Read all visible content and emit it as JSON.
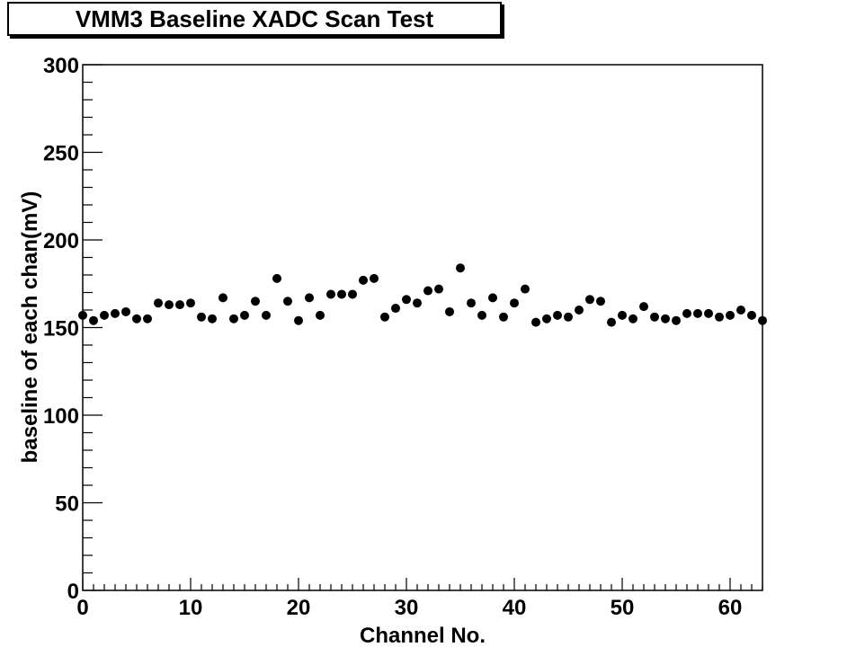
{
  "chart_data": {
    "type": "scatter",
    "title": "VMM3 Baseline XADC Scan Test",
    "xlabel": "Channel No.",
    "ylabel": "baseline of each chan(mV)",
    "xlim": [
      0,
      63
    ],
    "ylim": [
      0,
      300
    ],
    "x_ticks": [
      0,
      10,
      20,
      30,
      40,
      50,
      60
    ],
    "y_ticks": [
      0,
      50,
      100,
      150,
      200,
      250,
      300
    ],
    "grid": false,
    "legend": false,
    "marker_color": "#000000",
    "points": [
      {
        "x": 0,
        "y": 157
      },
      {
        "x": 1,
        "y": 154
      },
      {
        "x": 2,
        "y": 157
      },
      {
        "x": 3,
        "y": 158
      },
      {
        "x": 4,
        "y": 159
      },
      {
        "x": 5,
        "y": 155
      },
      {
        "x": 6,
        "y": 155
      },
      {
        "x": 7,
        "y": 164
      },
      {
        "x": 8,
        "y": 163
      },
      {
        "x": 9,
        "y": 163
      },
      {
        "x": 10,
        "y": 164
      },
      {
        "x": 11,
        "y": 156
      },
      {
        "x": 12,
        "y": 155
      },
      {
        "x": 13,
        "y": 167
      },
      {
        "x": 14,
        "y": 155
      },
      {
        "x": 15,
        "y": 157
      },
      {
        "x": 16,
        "y": 165
      },
      {
        "x": 17,
        "y": 157
      },
      {
        "x": 18,
        "y": 178
      },
      {
        "x": 19,
        "y": 165
      },
      {
        "x": 20,
        "y": 154
      },
      {
        "x": 21,
        "y": 167
      },
      {
        "x": 22,
        "y": 157
      },
      {
        "x": 23,
        "y": 169
      },
      {
        "x": 24,
        "y": 169
      },
      {
        "x": 25,
        "y": 169
      },
      {
        "x": 26,
        "y": 177
      },
      {
        "x": 27,
        "y": 178
      },
      {
        "x": 28,
        "y": 156
      },
      {
        "x": 29,
        "y": 161
      },
      {
        "x": 30,
        "y": 166
      },
      {
        "x": 31,
        "y": 164
      },
      {
        "x": 32,
        "y": 171
      },
      {
        "x": 33,
        "y": 172
      },
      {
        "x": 34,
        "y": 159
      },
      {
        "x": 35,
        "y": 184
      },
      {
        "x": 36,
        "y": 164
      },
      {
        "x": 37,
        "y": 157
      },
      {
        "x": 38,
        "y": 167
      },
      {
        "x": 39,
        "y": 156
      },
      {
        "x": 40,
        "y": 164
      },
      {
        "x": 41,
        "y": 172
      },
      {
        "x": 42,
        "y": 153
      },
      {
        "x": 43,
        "y": 155
      },
      {
        "x": 44,
        "y": 157
      },
      {
        "x": 45,
        "y": 156
      },
      {
        "x": 46,
        "y": 160
      },
      {
        "x": 47,
        "y": 166
      },
      {
        "x": 48,
        "y": 165
      },
      {
        "x": 49,
        "y": 153
      },
      {
        "x": 50,
        "y": 157
      },
      {
        "x": 51,
        "y": 155
      },
      {
        "x": 52,
        "y": 162
      },
      {
        "x": 53,
        "y": 156
      },
      {
        "x": 54,
        "y": 155
      },
      {
        "x": 55,
        "y": 154
      },
      {
        "x": 56,
        "y": 158
      },
      {
        "x": 57,
        "y": 158
      },
      {
        "x": 58,
        "y": 158
      },
      {
        "x": 59,
        "y": 156
      },
      {
        "x": 60,
        "y": 157
      },
      {
        "x": 61,
        "y": 160
      },
      {
        "x": 62,
        "y": 157
      },
      {
        "x": 63,
        "y": 154
      }
    ]
  }
}
